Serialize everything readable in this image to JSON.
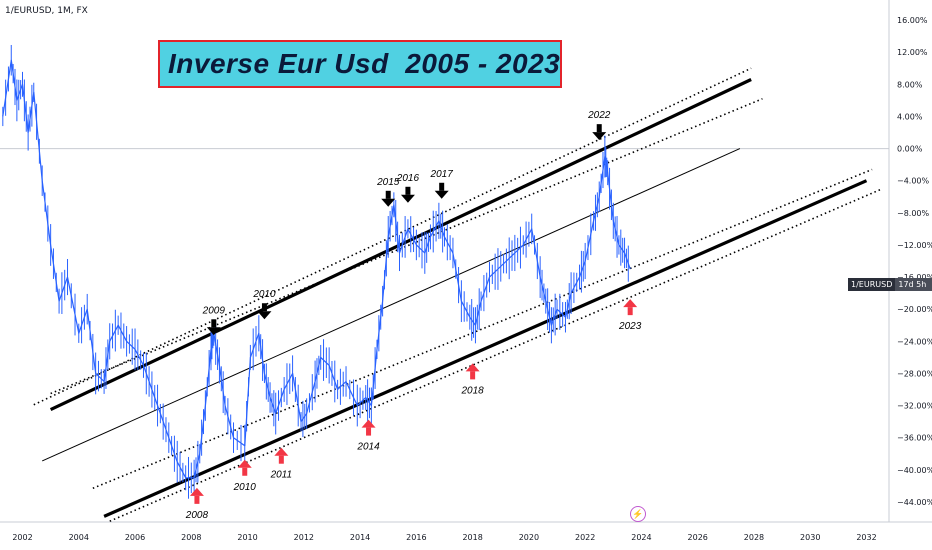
{
  "symbol": "1/EURUSD, 1M, FX",
  "title": "Inverse Eur Usd  2005 - 2023",
  "price_tag": {
    "symbol": "1/EURUSD",
    "countdown": "17d 5h"
  },
  "chart_data": {
    "type": "line",
    "title": "Inverse Eur Usd  2005 - 2023",
    "xlim": [
      2001.2,
      2032.8
    ],
    "ylim": [
      -46.5,
      18.5
    ],
    "x_ticks": [
      2002,
      2004,
      2006,
      2008,
      2010,
      2012,
      2014,
      2016,
      2018,
      2020,
      2022,
      2024,
      2026,
      2028,
      2030,
      2032
    ],
    "y_ticks": [
      {
        "v": 16,
        "label": "16.00%"
      },
      {
        "v": 12,
        "label": "12.00%"
      },
      {
        "v": 8,
        "label": "8.00%"
      },
      {
        "v": 4,
        "label": "4.00%"
      },
      {
        "v": 0,
        "label": "0.00%"
      },
      {
        "v": -4,
        "label": "−4.00%"
      },
      {
        "v": -8,
        "label": "−8.00%"
      },
      {
        "v": -12,
        "label": "−12.00%"
      },
      {
        "v": -16,
        "label": "−16.00%"
      },
      {
        "v": -20,
        "label": "−20.00%"
      },
      {
        "v": -24,
        "label": "−24.00%"
      },
      {
        "v": -28,
        "label": "−28.00%"
      },
      {
        "v": -32,
        "label": "−32.00%"
      },
      {
        "v": -36,
        "label": "−36.00%"
      },
      {
        "v": -40,
        "label": "−40.00%"
      },
      {
        "v": -44,
        "label": "−44.00%"
      }
    ],
    "zero_line": 0,
    "series": [
      {
        "values_x": [
          2001.3,
          2001.6,
          2001.8,
          2002.0,
          2002.2,
          2002.4,
          2002.7,
          2003.0,
          2003.3,
          2003.6,
          2004.0,
          2004.3,
          2004.6,
          2004.9,
          2005.1,
          2005.4,
          2005.7,
          2006.0,
          2006.3,
          2006.6,
          2006.9,
          2007.2,
          2007.5,
          2007.8,
          2008.1,
          2008.3,
          2008.5,
          2008.7,
          2008.8,
          2009.0,
          2009.2,
          2009.5,
          2009.9,
          2010.1,
          2010.4,
          2010.6,
          2010.8,
          2011.0,
          2011.3,
          2011.6,
          2011.9,
          2012.1,
          2012.4,
          2012.6,
          2012.9,
          2013.2,
          2013.5,
          2013.9,
          2014.2,
          2014.4,
          2014.6,
          2014.8,
          2015.0,
          2015.2,
          2015.4,
          2015.7,
          2016.0,
          2016.3,
          2016.5,
          2016.8,
          2017.0,
          2017.3,
          2017.6,
          2017.9,
          2018.1,
          2018.3,
          2018.6,
          2018.9,
          2019.2,
          2019.5,
          2019.8,
          2020.1,
          2020.4,
          2020.6,
          2020.8,
          2021.0,
          2021.3,
          2021.5,
          2021.8,
          2022.0,
          2022.3,
          2022.5,
          2022.7,
          2022.8,
          2023.0,
          2023.2,
          2023.4,
          2023.6
        ],
        "values_y": [
          4,
          11,
          6,
          8,
          2,
          7,
          -4,
          -12,
          -19,
          -16,
          -23,
          -20,
          -28,
          -29,
          -24,
          -22,
          -24,
          -25,
          -27,
          -30,
          -33,
          -36,
          -39,
          -41,
          -41,
          -38,
          -32,
          -25,
          -23,
          -27,
          -32,
          -36,
          -37,
          -26,
          -23,
          -28,
          -31,
          -33,
          -30,
          -28,
          -34,
          -33,
          -29,
          -26,
          -27,
          -30,
          -29,
          -32,
          -31,
          -32,
          -25,
          -19,
          -11,
          -7,
          -13,
          -10,
          -12,
          -13,
          -11,
          -9,
          -11,
          -13,
          -19,
          -21,
          -22,
          -19,
          -16,
          -15,
          -14,
          -13,
          -12,
          -10,
          -16,
          -19,
          -22,
          -20,
          -21,
          -18,
          -16,
          -14,
          -9,
          -6,
          -1,
          -3,
          -9,
          -12,
          -13,
          -15
        ]
      }
    ],
    "annotations": [
      {
        "text": "2009",
        "x": 2008.8,
        "y": -23.5,
        "marker": "down"
      },
      {
        "text": "2010",
        "x": 2010.6,
        "y": -21.5,
        "marker": "down"
      },
      {
        "text": "2015",
        "x": 2015.0,
        "y": -7.5,
        "marker": "down"
      },
      {
        "text": "2016",
        "x": 2015.7,
        "y": -7.0,
        "marker": "down"
      },
      {
        "text": "2017",
        "x": 2016.9,
        "y": -6.5,
        "marker": "down"
      },
      {
        "text": "2022",
        "x": 2022.5,
        "y": 0.8,
        "marker": "down"
      },
      {
        "text": "2008",
        "x": 2008.2,
        "y": -42.0,
        "marker": "up"
      },
      {
        "text": "2010",
        "x": 2009.9,
        "y": -38.5,
        "marker": "up"
      },
      {
        "text": "2011",
        "x": 2011.2,
        "y": -37.0,
        "marker": "up"
      },
      {
        "text": "2014",
        "x": 2014.3,
        "y": -33.5,
        "marker": "up"
      },
      {
        "text": "2018",
        "x": 2018.0,
        "y": -26.5,
        "marker": "up"
      },
      {
        "text": "2023",
        "x": 2023.6,
        "y": -18.5,
        "marker": "up"
      }
    ],
    "channel_lines": [
      {
        "style": "thick",
        "x": [
          2003.0,
          2027.9
        ],
        "y": [
          -32.5,
          8.6
        ]
      },
      {
        "style": "thick",
        "x": [
          2004.9,
          2032.0
        ],
        "y": [
          -45.8,
          -4.0
        ]
      },
      {
        "style": "thin",
        "x": [
          2002.7,
          2027.5
        ],
        "y": [
          -38.9,
          0.0
        ]
      },
      {
        "style": "dotted",
        "x": [
          2002.4,
          2027.9
        ],
        "y": [
          -31.9,
          10.0
        ]
      },
      {
        "style": "dotted",
        "x": [
          2003.0,
          2028.3
        ],
        "y": [
          -30.5,
          6.2
        ]
      },
      {
        "style": "dotted",
        "x": [
          2004.5,
          2032.2
        ],
        "y": [
          -42.3,
          -2.6
        ]
      },
      {
        "style": "dotted",
        "x": [
          2005.1,
          2032.5
        ],
        "y": [
          -46.4,
          -5.1
        ]
      }
    ]
  }
}
